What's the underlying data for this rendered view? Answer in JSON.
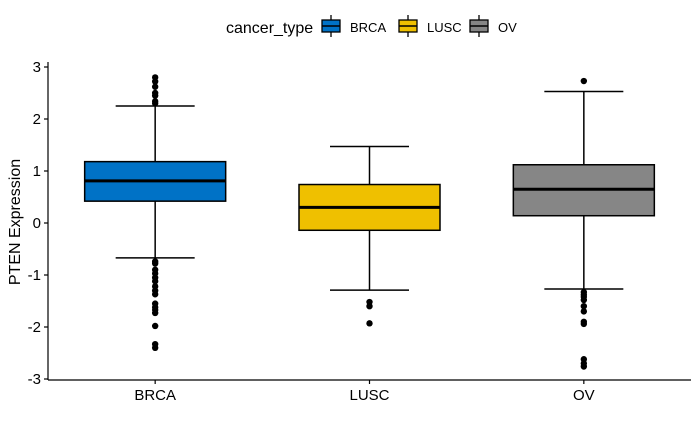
{
  "chart_data": {
    "type": "boxplot",
    "xlabel": "",
    "ylabel": "PTEN Expression",
    "ylim": [
      -3,
      3
    ],
    "yticks": [
      -3,
      -2,
      -1,
      0,
      1,
      2,
      3
    ],
    "categories": [
      "BRCA",
      "LUSC",
      "OV"
    ],
    "legend": {
      "title": "cancer_type",
      "position": "top",
      "entries": [
        "BRCA",
        "LUSC",
        "OV"
      ]
    },
    "series": [
      {
        "name": "BRCA",
        "color": "#0072C6",
        "whisker_low": -0.67,
        "q1": 0.42,
        "median": 0.81,
        "q3": 1.18,
        "whisker_high": 2.25,
        "outliers": [
          2.8,
          2.72,
          2.62,
          2.5,
          2.45,
          2.34,
          2.3,
          -0.74,
          -0.78,
          -0.9,
          -0.97,
          -1.05,
          -1.12,
          -1.22,
          -1.3,
          -1.37,
          -1.55,
          -1.62,
          -1.67,
          -1.73,
          -1.98,
          -2.33,
          -2.4
        ]
      },
      {
        "name": "LUSC",
        "color": "#EFC000",
        "whisker_low": -1.29,
        "q1": -0.14,
        "median": 0.3,
        "q3": 0.74,
        "whisker_high": 1.47,
        "outliers": [
          -1.52,
          -1.6,
          -1.93
        ]
      },
      {
        "name": "OV",
        "color": "#868686",
        "whisker_low": -1.27,
        "q1": 0.14,
        "median": 0.65,
        "q3": 1.12,
        "whisker_high": 2.53,
        "outliers": [
          2.73,
          -1.33,
          -1.38,
          -1.42,
          -1.48,
          -1.6,
          -1.7,
          -1.9,
          -1.94,
          -2.62,
          -2.7,
          -2.76
        ]
      }
    ]
  }
}
